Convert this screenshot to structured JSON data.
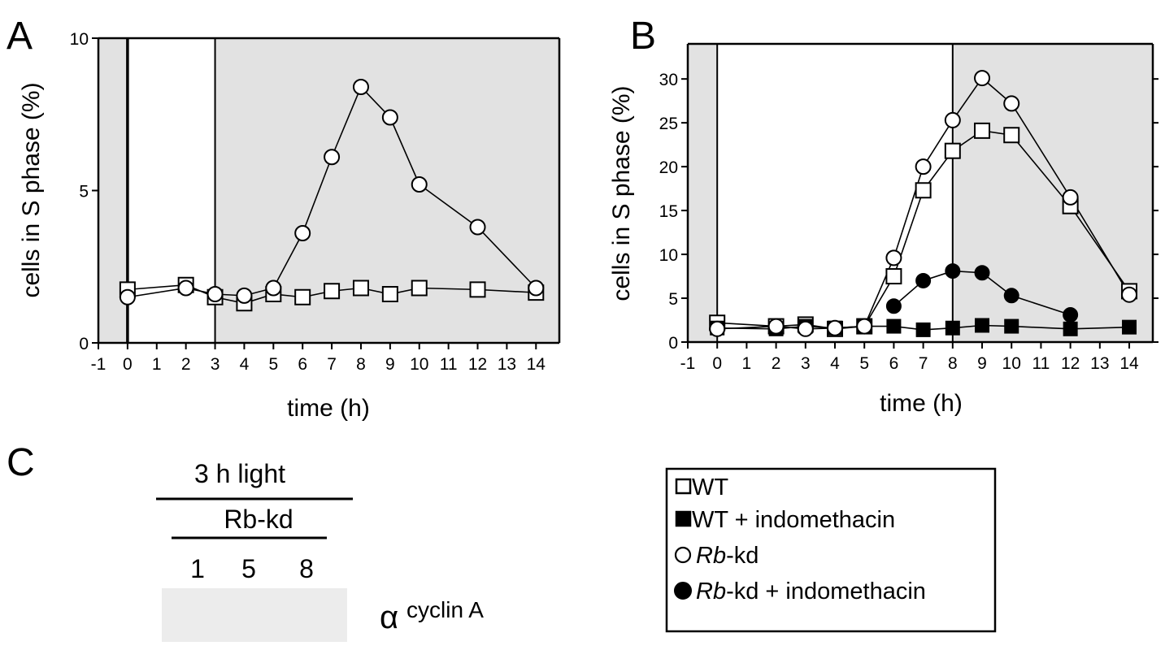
{
  "panels": {
    "A": "A",
    "B": "B",
    "C": "C"
  },
  "shading_color": "#e2e2e2",
  "chart_data": [
    {
      "type": "line",
      "panel": "A",
      "xlabel": "time (h)",
      "ylabel": "cells in S phase (%)",
      "xlim": [
        -1,
        14.8
      ],
      "ylim": [
        0,
        10
      ],
      "x_ticks": [
        -1,
        0,
        1,
        2,
        3,
        4,
        5,
        6,
        7,
        8,
        9,
        10,
        11,
        12,
        13,
        14
      ],
      "y_ticks": [
        0,
        5,
        10
      ],
      "light_period": [
        0,
        3
      ],
      "series": [
        {
          "name": "WT",
          "marker": "square-open",
          "x": [
            0,
            2,
            3,
            4,
            5,
            6,
            7,
            8,
            9,
            10,
            12,
            14
          ],
          "y": [
            1.75,
            1.9,
            1.5,
            1.3,
            1.6,
            1.5,
            1.7,
            1.8,
            1.6,
            1.8,
            1.75,
            1.65
          ]
        },
        {
          "name": "Rb-kd",
          "marker": "circle-open",
          "x": [
            0,
            2,
            3,
            4,
            5,
            6,
            7,
            8,
            9,
            10,
            12,
            14
          ],
          "y": [
            1.5,
            1.8,
            1.6,
            1.55,
            1.8,
            3.6,
            6.1,
            8.4,
            7.4,
            5.2,
            3.8,
            1.8
          ]
        }
      ]
    },
    {
      "type": "line",
      "panel": "B",
      "xlabel": "time (h)",
      "ylabel": "cells in S phase (%)",
      "xlim": [
        -1,
        14.8
      ],
      "ylim": [
        0,
        34
      ],
      "x_ticks": [
        -1,
        0,
        1,
        2,
        3,
        4,
        5,
        6,
        7,
        8,
        9,
        10,
        11,
        12,
        13,
        14
      ],
      "y_ticks": [
        0,
        5,
        10,
        15,
        20,
        25,
        30
      ],
      "light_period": [
        0,
        8
      ],
      "series": [
        {
          "name": "WT",
          "marker": "square-open",
          "x": [
            0,
            2,
            3,
            4,
            5,
            6,
            7,
            8,
            9,
            10,
            12,
            14
          ],
          "y": [
            2.2,
            1.8,
            2.0,
            1.5,
            1.8,
            7.5,
            17.3,
            21.8,
            24.1,
            23.6,
            15.5,
            5.8
          ]
        },
        {
          "name": "WT + indomethacin",
          "marker": "square-filled",
          "x": [
            0,
            2,
            3,
            4,
            5,
            6,
            7,
            8,
            9,
            10,
            12,
            14
          ],
          "y": [
            1.6,
            1.5,
            1.8,
            1.6,
            1.8,
            1.8,
            1.4,
            1.6,
            1.9,
            1.8,
            1.5,
            1.7
          ]
        },
        {
          "name": "Rb-kd",
          "marker": "circle-open",
          "x": [
            0,
            2,
            3,
            4,
            5,
            6,
            7,
            8,
            9,
            10,
            12,
            14
          ],
          "y": [
            1.5,
            1.8,
            1.5,
            1.6,
            1.8,
            9.6,
            20.0,
            25.3,
            30.1,
            27.2,
            16.5,
            5.4
          ]
        },
        {
          "name": "Rb-kd + indomethacin",
          "marker": "circle-filled",
          "x": [
            6,
            7,
            8,
            9,
            10,
            12
          ],
          "y": [
            4.1,
            7.0,
            8.1,
            7.9,
            5.3,
            3.1
          ]
        }
      ]
    }
  ],
  "blot": {
    "condition_label": "3 h light",
    "strain_label": "Rb-kd",
    "lanes": [
      "1",
      "5",
      "8"
    ],
    "alpha": "α",
    "antibody": "cyclin A"
  },
  "legend": [
    {
      "marker": "square-open",
      "name": "WT",
      "italic_part": "",
      "rest": "WT"
    },
    {
      "marker": "square-filled",
      "name": "WT + indomethacin",
      "italic_part": "",
      "rest": "WT + indomethacin"
    },
    {
      "marker": "circle-open",
      "name": "Rb-kd",
      "italic_part": "Rb",
      "rest": "-kd"
    },
    {
      "marker": "circle-filled",
      "name": "Rb-kd + indomethacin",
      "italic_part": "Rb",
      "rest": "-kd + indomethacin"
    }
  ]
}
